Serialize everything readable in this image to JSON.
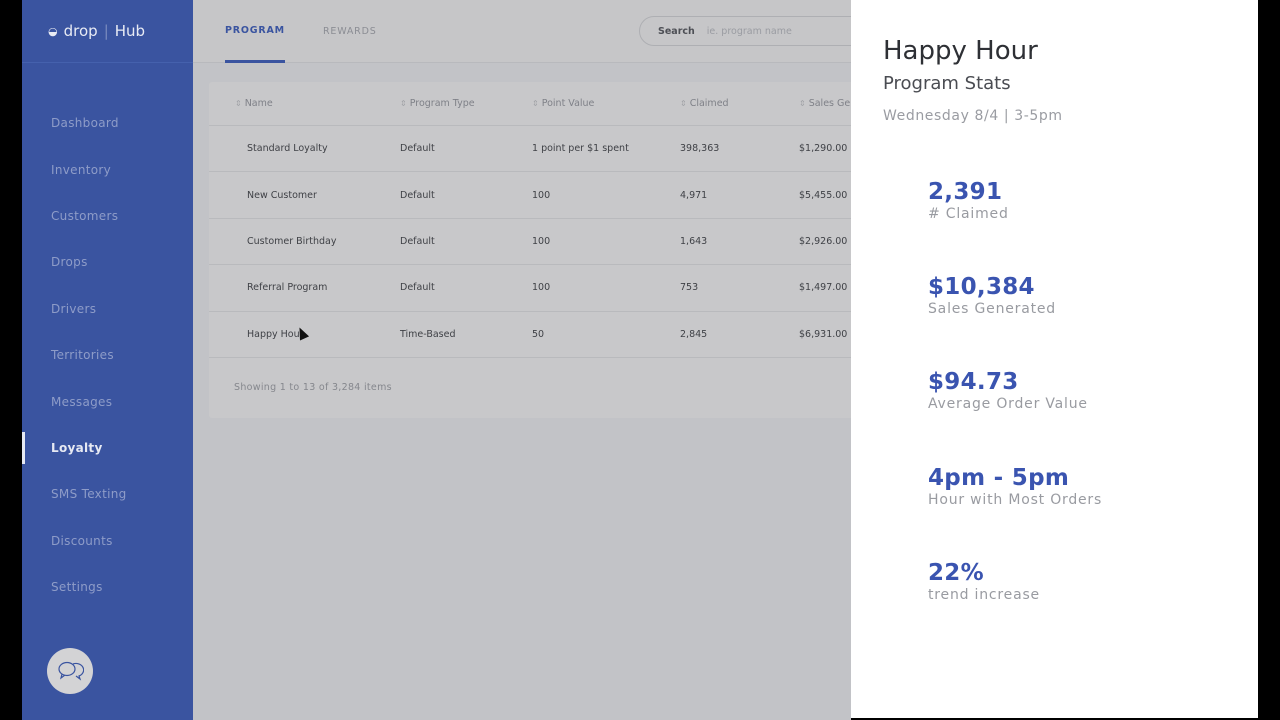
{
  "brand": {
    "name": "drop",
    "product": "Hub"
  },
  "sidebar": {
    "items": [
      {
        "label": "Dashboard"
      },
      {
        "label": "Inventory"
      },
      {
        "label": "Customers"
      },
      {
        "label": "Drops"
      },
      {
        "label": "Drivers"
      },
      {
        "label": "Territories"
      },
      {
        "label": "Messages"
      },
      {
        "label": "Loyalty",
        "active": true
      },
      {
        "label": "SMS Texting"
      },
      {
        "label": "Discounts"
      },
      {
        "label": "Settings"
      }
    ]
  },
  "tabs": [
    {
      "label": "PROGRAM",
      "active": true
    },
    {
      "label": "REWARDS"
    }
  ],
  "search": {
    "label": "Search",
    "placeholder": "ie. program name"
  },
  "table": {
    "headers": [
      "Name",
      "Program Type",
      "Point Value",
      "Claimed",
      "Sales Generated"
    ],
    "rows": [
      [
        "Standard Loyalty",
        "Default",
        "1 point per $1 spent",
        "398,363",
        "$1,290.00"
      ],
      [
        "New Customer",
        "Default",
        "100",
        "4,971",
        "$5,455.00"
      ],
      [
        "Customer Birthday",
        "Default",
        "100",
        "1,643",
        "$2,926.00"
      ],
      [
        "Referral Program",
        "Default",
        "100",
        "753",
        "$1,497.00"
      ],
      [
        "Happy Hour",
        "Time-Based",
        "50",
        "2,845",
        "$6,931.00"
      ]
    ],
    "footer": "Showing 1 to 13 of 3,284 items"
  },
  "panel": {
    "title": "Happy Hour",
    "subtitle": "Program Stats",
    "date": "Wednesday 8/4 | 3-5pm",
    "stats": [
      {
        "value": "2,391",
        "label": "# Claimed"
      },
      {
        "value": "$10,384",
        "label": "Sales Generated"
      },
      {
        "value": "$94.73",
        "label": "Average Order Value"
      },
      {
        "value": "4pm - 5pm",
        "label": "Hour with Most Orders"
      },
      {
        "value": "22%",
        "label": "trend increase"
      }
    ]
  }
}
